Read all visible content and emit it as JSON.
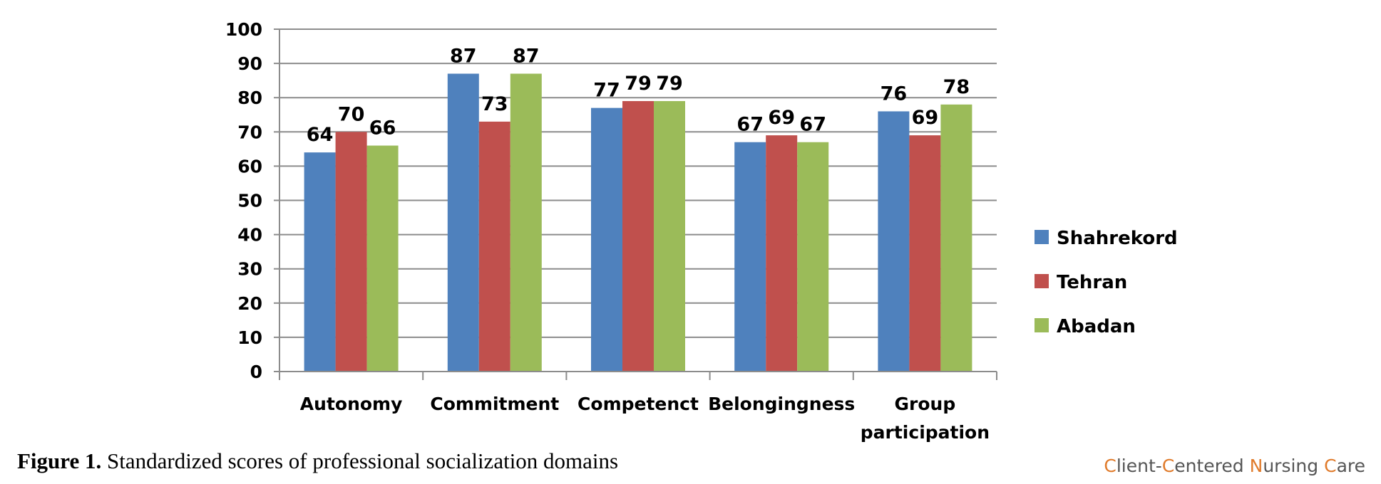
{
  "chart_data": {
    "type": "bar",
    "categories": [
      "Autonomy",
      "Commitment",
      "Competenct",
      "Belongingness",
      "Group participation"
    ],
    "series": [
      {
        "name": "Shahrekord",
        "values": [
          64,
          87,
          77,
          67,
          76
        ],
        "color": "#4f81bd"
      },
      {
        "name": "Tehran",
        "values": [
          70,
          73,
          79,
          69,
          69
        ],
        "color": "#c0504d"
      },
      {
        "name": "Abadan",
        "values": [
          66,
          87,
          79,
          67,
          78
        ],
        "color": "#9bbb59"
      }
    ],
    "ylim": [
      0,
      100
    ],
    "yticks": [
      0,
      10,
      20,
      30,
      40,
      50,
      60,
      70,
      80,
      90,
      100
    ],
    "grid": true,
    "legend_position": "right",
    "data_labels": true
  },
  "caption": {
    "lead": "Figure 1.",
    "text": " Standardized scores of professional socialization domains"
  },
  "journal": {
    "parts": [
      {
        "text": "C",
        "accent": true
      },
      {
        "text": "lient-",
        "accent": false
      },
      {
        "text": "C",
        "accent": true
      },
      {
        "text": "entered ",
        "accent": false
      },
      {
        "text": "N",
        "accent": true
      },
      {
        "text": "ursing ",
        "accent": false
      },
      {
        "text": "C",
        "accent": true
      },
      {
        "text": "are",
        "accent": false
      }
    ]
  }
}
